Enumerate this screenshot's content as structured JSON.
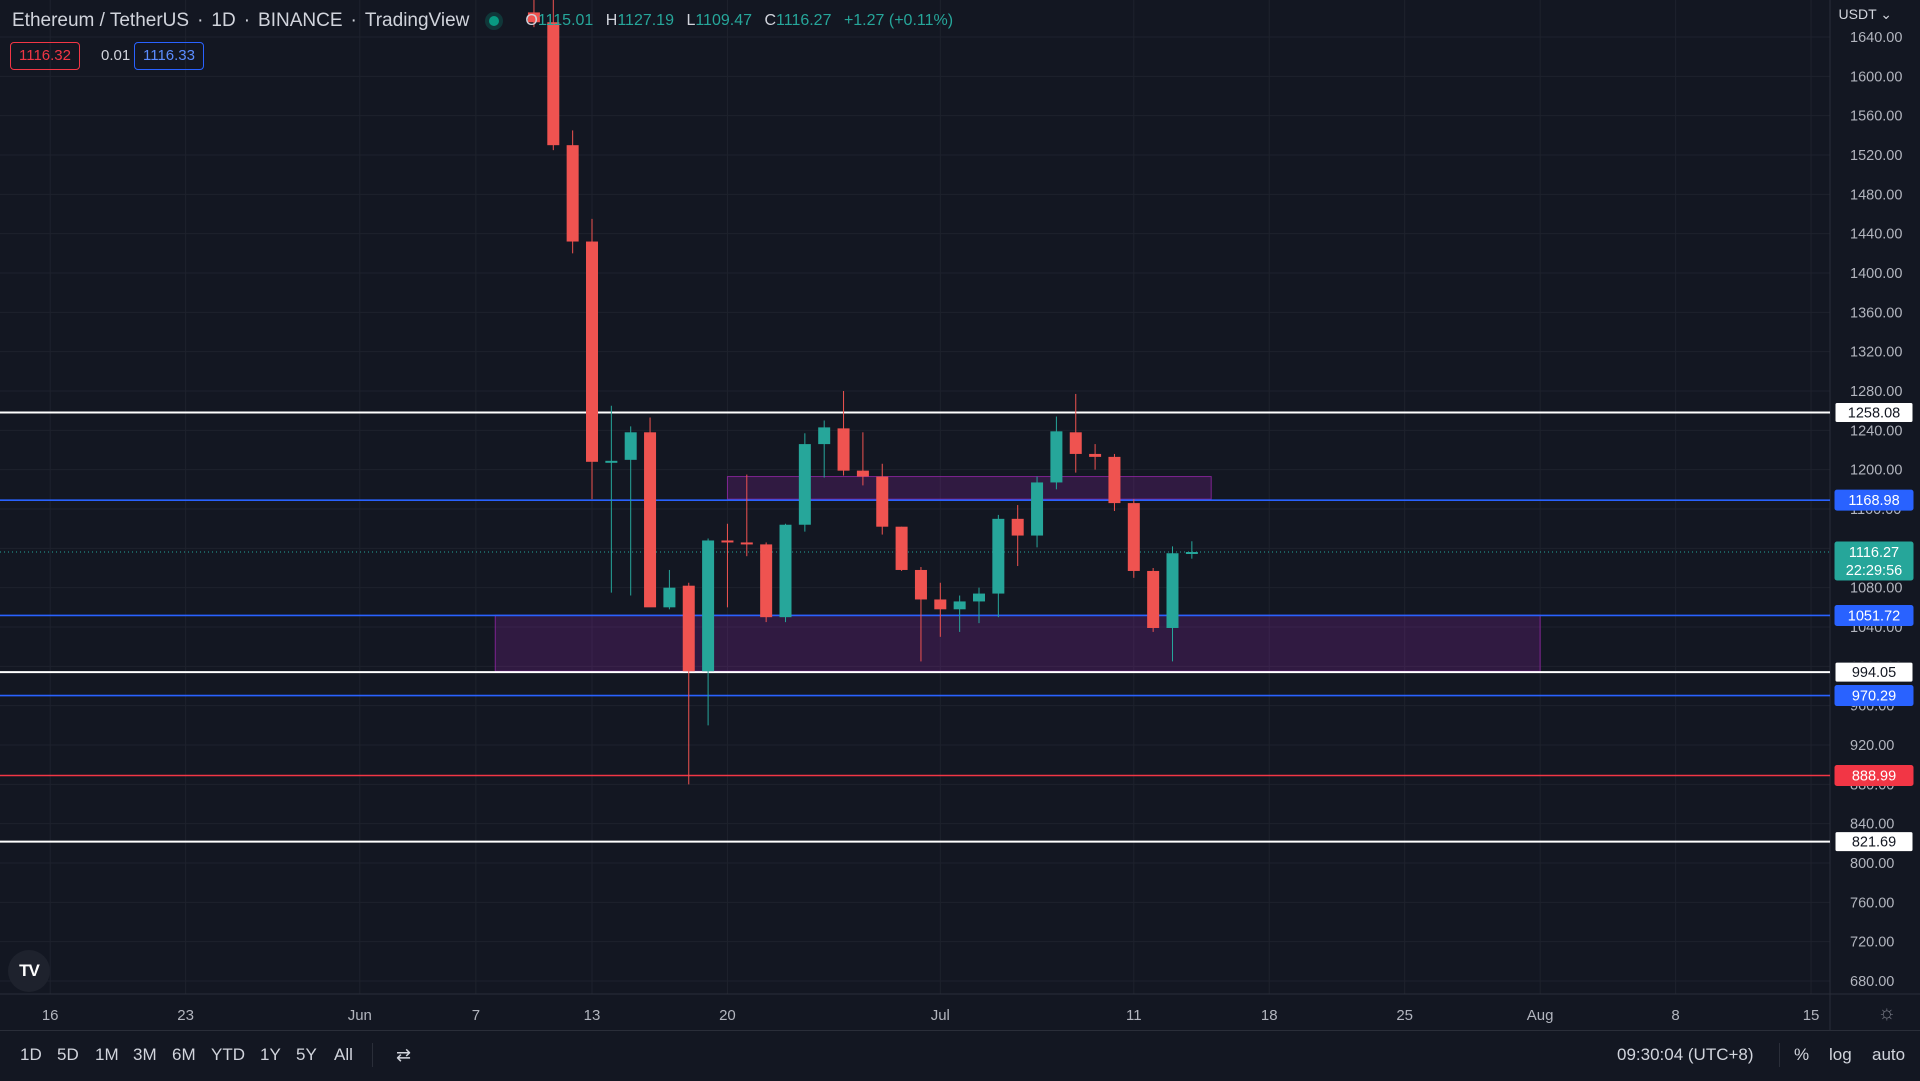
{
  "header": {
    "symbol": "Ethereum / TetherUS",
    "interval": "1D",
    "exchange": "BINANCE",
    "platform": "TradingView",
    "ohlc": {
      "o_label": "O",
      "o": "1115.01",
      "h_label": "H",
      "h": "1127.19",
      "l_label": "L",
      "l": "1109.47",
      "c_label": "C",
      "c": "1116.27",
      "change": "+1.27 (+0.11%)"
    }
  },
  "quote": {
    "bid": "1116.32",
    "spread": "0.01",
    "ask": "1116.33"
  },
  "currency_selector": "USDT",
  "logo_text": "TV",
  "bottom_bar": {
    "ranges": [
      "1D",
      "5D",
      "1M",
      "3M",
      "6M",
      "YTD",
      "1Y",
      "5Y",
      "All"
    ],
    "compare_icon": "compare-icon",
    "time": "09:30:04 (UTC+8)",
    "percent": "%",
    "log": "log",
    "auto": "auto"
  },
  "colors": {
    "background": "#131722",
    "up": "#26a69a",
    "down": "#ef5350",
    "grid": "#1e222d",
    "zone": "#9c27b0",
    "blue_line": "#2962ff",
    "red_line": "#f23645",
    "white_line": "#ffffff"
  },
  "chart_data": {
    "type": "candlestick",
    "y_range": [
      665,
      1660
    ],
    "y_ticks": [
      1640,
      1600,
      1560,
      1520,
      1480,
      1440,
      1400,
      1360,
      1320,
      1280,
      1240,
      1200,
      1160,
      1120,
      1080,
      1040,
      1000,
      960,
      920,
      880,
      840,
      800,
      760,
      720,
      680
    ],
    "x_ticks": [
      {
        "label": "16",
        "date": "2022-05-16"
      },
      {
        "label": "23",
        "date": "2022-05-23"
      },
      {
        "label": "Jun",
        "date": "2022-06-01"
      },
      {
        "label": "7",
        "date": "2022-06-07"
      },
      {
        "label": "13",
        "date": "2022-06-13"
      },
      {
        "label": "20",
        "date": "2022-06-20"
      },
      {
        "label": "Jul",
        "date": "2022-07-01"
      },
      {
        "label": "11",
        "date": "2022-07-11"
      },
      {
        "label": "18",
        "date": "2022-07-18"
      },
      {
        "label": "25",
        "date": "2022-07-25"
      },
      {
        "label": "Aug",
        "date": "2022-08-01"
      },
      {
        "label": "8",
        "date": "2022-08-08"
      },
      {
        "label": "15",
        "date": "2022-08-15"
      }
    ],
    "candles": [
      {
        "date": "2022-06-10",
        "o": 1665,
        "h": 1680,
        "l": 1650,
        "c": 1655
      },
      {
        "date": "2022-06-11",
        "o": 1655,
        "h": 1680,
        "l": 1525,
        "c": 1530
      },
      {
        "date": "2022-06-12",
        "o": 1530,
        "h": 1545,
        "l": 1420,
        "c": 1432
      },
      {
        "date": "2022-06-13",
        "o": 1432,
        "h": 1455,
        "l": 1170,
        "c": 1208
      },
      {
        "date": "2022-06-14",
        "o": 1208,
        "h": 1265,
        "l": 1075,
        "c": 1209
      },
      {
        "date": "2022-06-15",
        "o": 1210,
        "h": 1244,
        "l": 1072,
        "c": 1238
      },
      {
        "date": "2022-06-16",
        "o": 1238,
        "h": 1253,
        "l": 1062,
        "c": 1060
      },
      {
        "date": "2022-06-17",
        "o": 1060,
        "h": 1098,
        "l": 1058,
        "c": 1080
      },
      {
        "date": "2022-06-18",
        "o": 1082,
        "h": 1085,
        "l": 880,
        "c": 995
      },
      {
        "date": "2022-06-19",
        "o": 995,
        "h": 1130,
        "l": 940,
        "c": 1128
      },
      {
        "date": "2022-06-20",
        "o": 1128,
        "h": 1145,
        "l": 1060,
        "c": 1127
      },
      {
        "date": "2022-06-21",
        "o": 1126,
        "h": 1195,
        "l": 1112,
        "c": 1125
      },
      {
        "date": "2022-06-22",
        "o": 1124,
        "h": 1126,
        "l": 1045,
        "c": 1050
      },
      {
        "date": "2022-06-23",
        "o": 1050,
        "h": 1145,
        "l": 1045,
        "c": 1144
      },
      {
        "date": "2022-06-24",
        "o": 1144,
        "h": 1237,
        "l": 1137,
        "c": 1226
      },
      {
        "date": "2022-06-25",
        "o": 1226,
        "h": 1250,
        "l": 1192,
        "c": 1243
      },
      {
        "date": "2022-06-26",
        "o": 1242,
        "h": 1280,
        "l": 1194,
        "c": 1199
      },
      {
        "date": "2022-06-27",
        "o": 1199,
        "h": 1238,
        "l": 1184,
        "c": 1193
      },
      {
        "date": "2022-06-28",
        "o": 1193,
        "h": 1206,
        "l": 1134,
        "c": 1142
      },
      {
        "date": "2022-06-29",
        "o": 1142,
        "h": 1142,
        "l": 1097,
        "c": 1098
      },
      {
        "date": "2022-06-30",
        "o": 1098,
        "h": 1101,
        "l": 1005,
        "c": 1068
      },
      {
        "date": "2022-07-01",
        "o": 1068,
        "h": 1085,
        "l": 1030,
        "c": 1058
      },
      {
        "date": "2022-07-02",
        "o": 1058,
        "h": 1072,
        "l": 1035,
        "c": 1066
      },
      {
        "date": "2022-07-03",
        "o": 1066,
        "h": 1080,
        "l": 1044,
        "c": 1074
      },
      {
        "date": "2022-07-04",
        "o": 1074,
        "h": 1154,
        "l": 1050,
        "c": 1150
      },
      {
        "date": "2022-07-05",
        "o": 1150,
        "h": 1164,
        "l": 1102,
        "c": 1133
      },
      {
        "date": "2022-07-06",
        "o": 1133,
        "h": 1193,
        "l": 1121,
        "c": 1187
      },
      {
        "date": "2022-07-07",
        "o": 1187,
        "h": 1254,
        "l": 1180,
        "c": 1239
      },
      {
        "date": "2022-07-08",
        "o": 1238,
        "h": 1277,
        "l": 1197,
        "c": 1216
      },
      {
        "date": "2022-07-09",
        "o": 1216,
        "h": 1226,
        "l": 1200,
        "c": 1213
      },
      {
        "date": "2022-07-10",
        "o": 1213,
        "h": 1216,
        "l": 1158,
        "c": 1166
      },
      {
        "date": "2022-07-11",
        "o": 1166,
        "h": 1170,
        "l": 1090,
        "c": 1097
      },
      {
        "date": "2022-07-12",
        "o": 1097,
        "h": 1100,
        "l": 1035,
        "c": 1039
      },
      {
        "date": "2022-07-13",
        "o": 1039,
        "h": 1122,
        "l": 1005,
        "c": 1115
      },
      {
        "date": "2022-07-14",
        "o": 1115.01,
        "h": 1127.19,
        "l": 1109.47,
        "c": 1116.27
      }
    ],
    "horizontal_lines": [
      {
        "price": 1258.08,
        "label": "1258.08",
        "color": "#ffffff"
      },
      {
        "price": 1168.98,
        "label": "1168.98",
        "color": "#2962ff"
      },
      {
        "price": 1051.72,
        "label": "1051.72",
        "color": "#2962ff"
      },
      {
        "price": 994.05,
        "label": "994.05",
        "color": "#ffffff"
      },
      {
        "price": 970.29,
        "label": "970.29",
        "color": "#2962ff"
      },
      {
        "price": 888.99,
        "label": "888.99",
        "color": "#f23645"
      },
      {
        "price": 821.69,
        "label": "821.69",
        "color": "#ffffff"
      }
    ],
    "zones": [
      {
        "date_start": "2022-06-20",
        "date_end": "2022-07-15",
        "price_top": 1193,
        "price_bottom": 1170,
        "color": "#9c27b0"
      },
      {
        "date_start": "2022-06-08",
        "date_end": "2022-08-01",
        "price_top": 1052,
        "price_bottom": 995,
        "color": "#9c27b0"
      }
    ],
    "last_price": {
      "price": 1116.27,
      "label": "1116.27",
      "countdown": "22:29:56",
      "color": "#26a69a"
    }
  }
}
